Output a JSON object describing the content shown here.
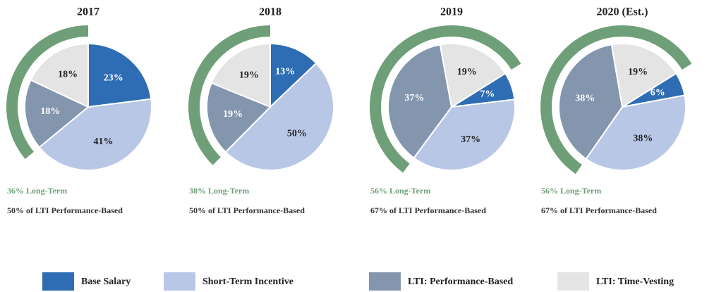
{
  "chart_data": [
    {
      "type": "pie",
      "title": "2017",
      "categories": [
        "Base Salary",
        "Short-Term Incentive",
        "LTI: Performance-Based",
        "LTI: Time-Vesting"
      ],
      "values": [
        23,
        41,
        18,
        18
      ],
      "colors": [
        "#2e6db4",
        "#b9c7e6",
        "#8496ae",
        "#e4e4e4"
      ],
      "startangle": 0,
      "annotations": [
        "36% Long-Term",
        "50% of LTI Performance-Based"
      ]
    },
    {
      "type": "pie",
      "title": "2018",
      "categories": [
        "Base Salary",
        "Short-Term Incentive",
        "LTI: Performance-Based",
        "LTI: Time-Vesting"
      ],
      "values": [
        13,
        50,
        19,
        19
      ],
      "colors": [
        "#2e6db4",
        "#b9c7e6",
        "#8496ae",
        "#e4e4e4"
      ],
      "startangle": 0,
      "annotations": [
        "38% Long-Term",
        "50% of LTI Performance-Based"
      ]
    },
    {
      "type": "pie",
      "title": "2019",
      "categories": [
        "Base Salary",
        "Short-Term Incentive",
        "LTI: Performance-Based",
        "LTI: Time-Vesting"
      ],
      "values": [
        7,
        37,
        37,
        19
      ],
      "colors": [
        "#2e6db4",
        "#b9c7e6",
        "#8496ae",
        "#e4e4e4"
      ],
      "startangle": 58,
      "annotations": [
        "56% Long-Term",
        "67% of LTI Performance-Based"
      ]
    },
    {
      "type": "pie",
      "title": "2020 (Est.)",
      "categories": [
        "Base Salary",
        "Short-Term Incentive",
        "LTI: Performance-Based",
        "LTI: Time-Vesting"
      ],
      "values": [
        6,
        38,
        38,
        19
      ],
      "colors": [
        "#2e6db4",
        "#b9c7e6",
        "#8496ae",
        "#e4e4e4"
      ],
      "startangle": 58,
      "annotations": [
        "56% Long-Term",
        "67% of LTI Performance-Based"
      ]
    }
  ]
}
